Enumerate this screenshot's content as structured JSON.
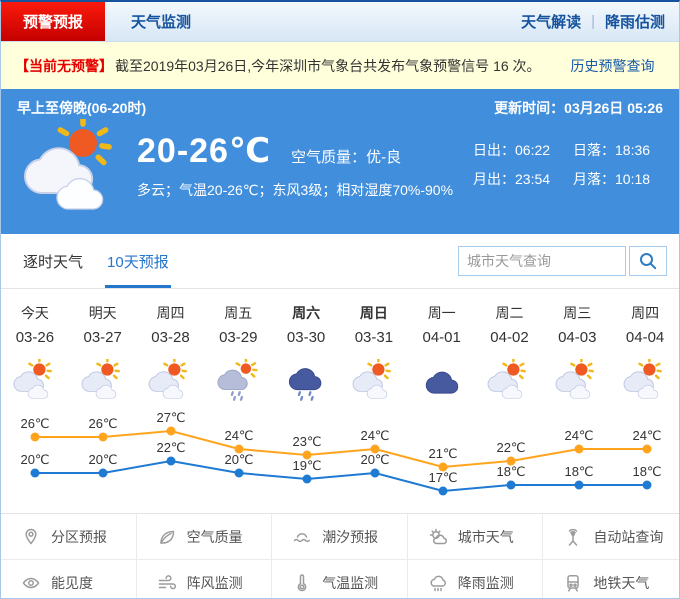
{
  "header": {
    "tabs": [
      {
        "label": "预警预报",
        "active": true
      },
      {
        "label": "天气监测",
        "active": false
      }
    ],
    "links": [
      "天气解读",
      "降雨估测"
    ]
  },
  "alert_bar": {
    "badge": "【当前无预警】",
    "text": "截至2019年03月26日,今年深圳市气象台共发布气象预警信号 16 次。",
    "link": "历史预警查询"
  },
  "current": {
    "period": "早上至傍晚(06-20时)",
    "update_time": "更新时间：03月26日 05:26",
    "temp_range": "20-26℃",
    "air_quality": "空气质量：优-良",
    "description": "多云；气温20-26℃；东风3级；相对湿度70%-90%",
    "icon": "partly-cloudy-icon",
    "sunrise": "日出：06:22",
    "sunset": "日落：18:36",
    "moonrise": "月出：23:54",
    "moonset": "月落：10:18"
  },
  "tabs_bar": {
    "tabs": [
      {
        "label": "逐时天气",
        "active": false
      },
      {
        "label": "10天预报",
        "active": true
      }
    ],
    "search_placeholder": "城市天气查询",
    "search_value": "",
    "search_icon": "search-icon"
  },
  "forecast_days": [
    {
      "name": "今天",
      "date": "03-26",
      "icon": "partly-cloudy",
      "bold": false
    },
    {
      "name": "明天",
      "date": "03-27",
      "icon": "partly-cloudy",
      "bold": false
    },
    {
      "name": "周四",
      "date": "03-28",
      "icon": "partly-cloudy",
      "bold": false
    },
    {
      "name": "周五",
      "date": "03-29",
      "icon": "sun-shower",
      "bold": false
    },
    {
      "name": "周六",
      "date": "03-30",
      "icon": "rain",
      "bold": true
    },
    {
      "name": "周日",
      "date": "03-31",
      "icon": "partly-cloudy",
      "bold": true
    },
    {
      "name": "周一",
      "date": "04-01",
      "icon": "cloudy",
      "bold": false
    },
    {
      "name": "周二",
      "date": "04-02",
      "icon": "partly-cloudy",
      "bold": false
    },
    {
      "name": "周三",
      "date": "04-03",
      "icon": "partly-cloudy",
      "bold": false
    },
    {
      "name": "周四",
      "date": "04-04",
      "icon": "partly-cloudy",
      "bold": false
    }
  ],
  "chart_data": {
    "type": "line",
    "categories": [
      "03-26",
      "03-27",
      "03-28",
      "03-29",
      "03-30",
      "03-31",
      "04-01",
      "04-02",
      "04-03",
      "04-04"
    ],
    "series": [
      {
        "name": "high",
        "color": "#ffa41c",
        "values": [
          26,
          26,
          27,
          24,
          23,
          24,
          21,
          22,
          24,
          24
        ]
      },
      {
        "name": "low",
        "color": "#1e7ad2",
        "values": [
          20,
          20,
          22,
          20,
          19,
          20,
          17,
          18,
          18,
          18
        ]
      }
    ],
    "unit": "℃",
    "ylim": [
      16,
      28
    ],
    "grid": false,
    "legend": "none",
    "label_color": "#333333"
  },
  "menu": {
    "items": [
      {
        "label": "分区预报",
        "icon": "map-pin-icon"
      },
      {
        "label": "空气质量",
        "icon": "leaf-icon"
      },
      {
        "label": "潮汐预报",
        "icon": "wave-icon"
      },
      {
        "label": "城市天气",
        "icon": "city-weather-icon"
      },
      {
        "label": "自动站查询",
        "icon": "station-icon"
      },
      {
        "label": "能见度",
        "icon": "eye-icon"
      },
      {
        "label": "阵风监测",
        "icon": "wind-icon"
      },
      {
        "label": "气温监测",
        "icon": "thermometer-icon"
      },
      {
        "label": "降雨监测",
        "icon": "rain-monitor-icon"
      },
      {
        "label": "地铁天气",
        "icon": "metro-icon"
      }
    ]
  },
  "colors": {
    "brand_blue": "#15539e",
    "alert_red": "#e60000",
    "panel_blue": "#418fdc",
    "active_tab_blue": "#2576cd",
    "high_line": "#ffa41c",
    "low_line": "#1e7ad2",
    "alert_bg": "#ffffdb"
  }
}
